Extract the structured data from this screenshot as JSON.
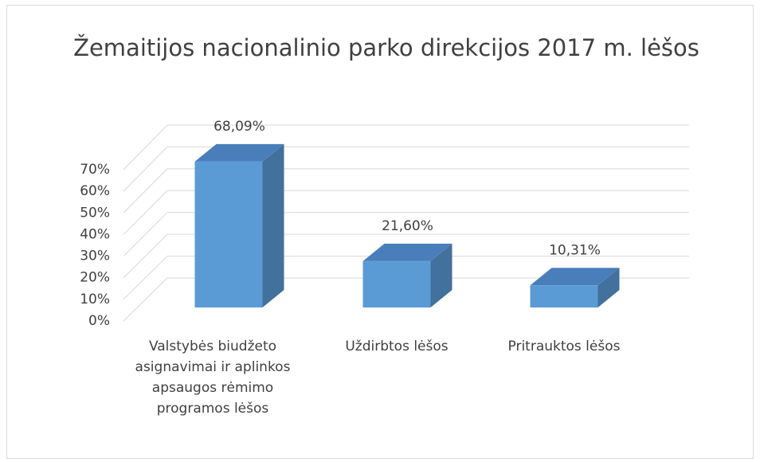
{
  "chart_data": {
    "type": "bar3d",
    "title": "Žemaitijos nacionalinio parko direkcijos 2017 m. lėšos",
    "categories": [
      "Valstybės biudžeto asignavimai ir aplinkos apsaugos rėmimo programos lėšos",
      "Uždirbtos lėšos",
      "Pritrauktos lėšos"
    ],
    "values": [
      68.09,
      21.6,
      10.31
    ],
    "value_labels": [
      "68,09%",
      "21,60%",
      "10,31%"
    ],
    "color": "#5b9bd5",
    "ylim": [
      0,
      70
    ],
    "yticks": [
      {
        "value": 0,
        "label": "0%"
      },
      {
        "value": 10,
        "label": "10%"
      },
      {
        "value": 20,
        "label": "20%"
      },
      {
        "value": 30,
        "label": "30%"
      },
      {
        "value": 40,
        "label": "40%"
      },
      {
        "value": 50,
        "label": "50%"
      },
      {
        "value": 60,
        "label": "60%"
      },
      {
        "value": 70,
        "label": "70%"
      }
    ],
    "grid": true
  }
}
